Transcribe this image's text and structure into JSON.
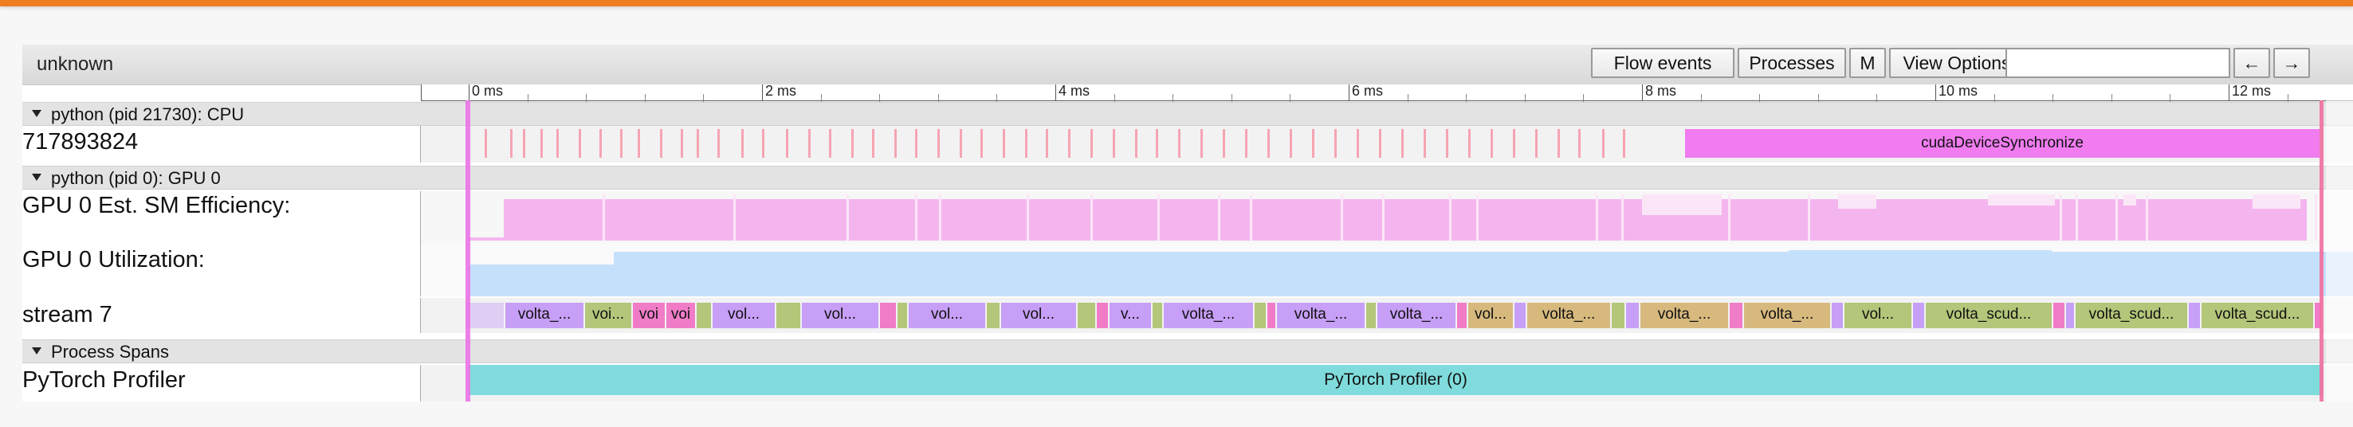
{
  "window": {
    "title": "unknown"
  },
  "toolbar": {
    "flow_events": "Flow events",
    "processes": "Processes",
    "m": "M",
    "view_options": "View Options",
    "search_value": "",
    "prev": "←",
    "next": "→"
  },
  "ruler": {
    "ticks": [
      "0 ms",
      "2 ms",
      "4 ms",
      "6 ms",
      "8 ms",
      "10 ms",
      "12 ms"
    ]
  },
  "groups": {
    "cpu": {
      "label": "python (pid 21730): CPU"
    },
    "gpu": {
      "label": "python (pid 0): GPU 0"
    },
    "spans": {
      "label": "Process Spans"
    }
  },
  "tracks": {
    "thread": {
      "label": "717893824",
      "sync_slice": "cudaDeviceSynchronize"
    },
    "sm_eff": {
      "label": "GPU 0 Est. SM Efficiency:"
    },
    "util": {
      "label": "GPU 0 Utilization:"
    },
    "stream": {
      "label": "stream 7",
      "kernels": [
        "volta_...",
        "voi...",
        "voi",
        "voi",
        "vol...",
        "vol...",
        "vol...",
        "vol...",
        "v...",
        "volta_...",
        "volta_...",
        "volta_...",
        "vol...",
        "volta_...",
        "volta_...",
        "volta_...",
        "vol...",
        "volta_scud...",
        "volta_scud...",
        "volta_scud..."
      ]
    },
    "profiler": {
      "label": "PyTorch Profiler",
      "span": "PyTorch Profiler (0)"
    }
  },
  "colors": {
    "accent": "#ef7d22",
    "sync": "#f07cf0",
    "sm_eff": "#f4b5ef",
    "util": "#c5e0fb",
    "profiler": "#80dcdc",
    "kernel_purple": "#c79ff6",
    "kernel_green": "#b4c67a",
    "kernel_tan": "#d7b97e",
    "kernel_pink": "#f07cc8"
  }
}
